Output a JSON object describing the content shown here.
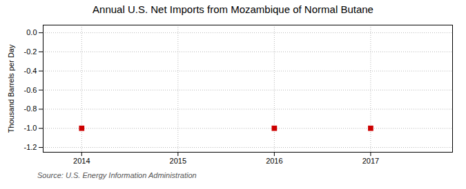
{
  "chart_data": {
    "type": "scatter",
    "title": "Annual U.S. Net Imports from Mozambique of Normal Butane",
    "ylabel": "Thousand Barrels per Day",
    "source": "Source: U.S. Energy Information Administration",
    "x": [
      2014,
      2016,
      2017
    ],
    "values": [
      -1.0,
      -1.0,
      -1.0
    ],
    "color": "#cc0000",
    "marker": "square",
    "xlim": [
      2013.6,
      2017.85
    ],
    "xticks": [
      2014,
      2015,
      2016,
      2017
    ],
    "ylim": [
      -1.25,
      0.08
    ],
    "yticks": [
      {
        "value": 0.0,
        "label": "0.0"
      },
      -0.2,
      -0.4,
      -0.6,
      -0.8,
      {
        "value": -1.0,
        "label": "-1.0"
      },
      -1.2
    ],
    "grid": true
  }
}
